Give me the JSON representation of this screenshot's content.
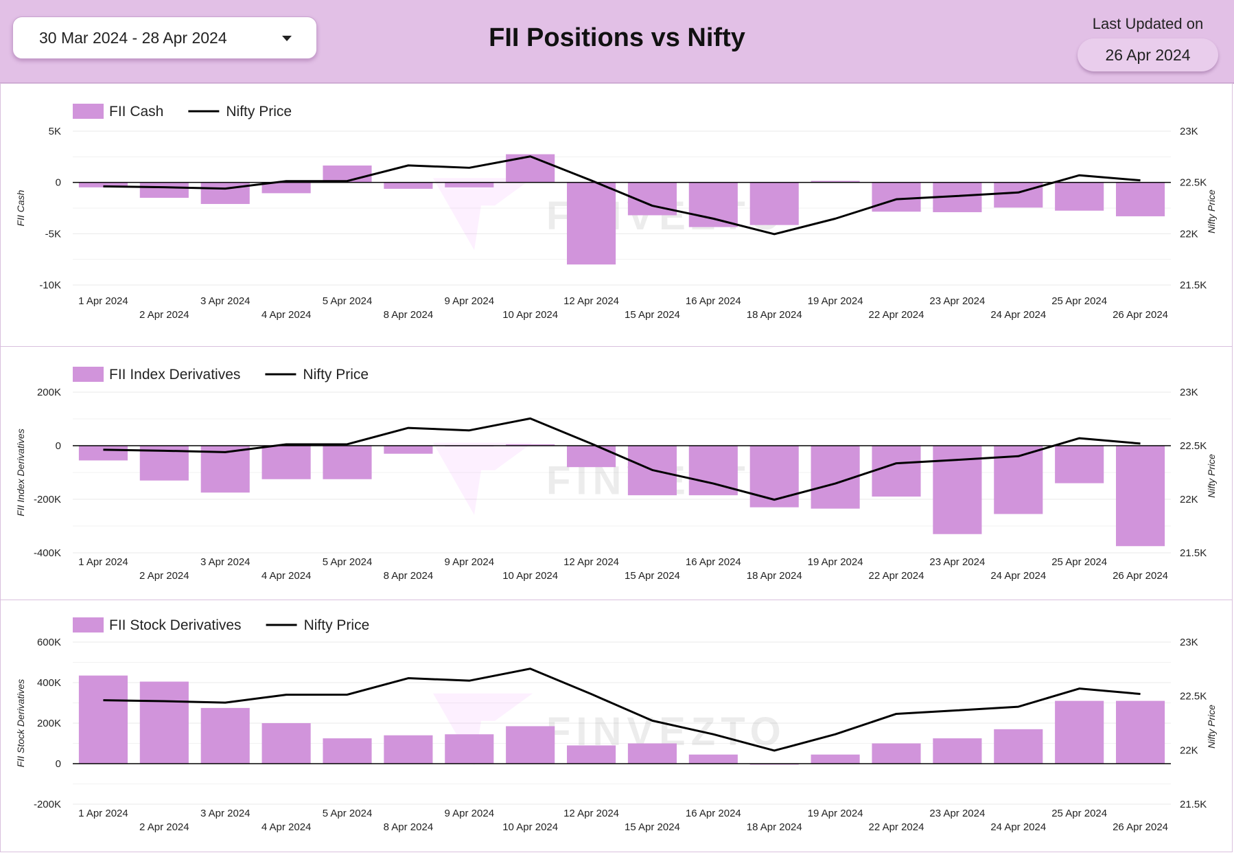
{
  "header": {
    "date_range": "30 Mar 2024 - 28 Apr 2024",
    "title": "FII Positions vs Nifty",
    "last_updated_label": "Last Updated on",
    "last_updated_value": "26 Apr 2024"
  },
  "watermark": "FINVEZTO",
  "colors": {
    "bar": "#d194db",
    "line": "#000000",
    "header_bg": "#e2c0e6"
  },
  "chart_data": [
    {
      "type": "bar",
      "categories": [
        "1 Apr 2024",
        "2 Apr 2024",
        "3 Apr 2024",
        "4 Apr 2024",
        "5 Apr 2024",
        "8 Apr 2024",
        "9 Apr 2024",
        "10 Apr 2024",
        "12 Apr 2024",
        "15 Apr 2024",
        "16 Apr 2024",
        "18 Apr 2024",
        "19 Apr 2024",
        "22 Apr 2024",
        "23 Apr 2024",
        "24 Apr 2024",
        "25 Apr 2024",
        "26 Apr 2024"
      ],
      "series": [
        {
          "name": "FII Cash",
          "type": "bar",
          "axis": "left",
          "values": [
            -480,
            -1500,
            -2100,
            -1050,
            1650,
            -620,
            -480,
            2750,
            -8000,
            -3200,
            -4350,
            -4150,
            150,
            -2850,
            -2900,
            -2450,
            -2750,
            -3300
          ]
        },
        {
          "name": "Nifty Price",
          "type": "line",
          "axis": "right",
          "values": [
            22462,
            22453,
            22440,
            22513,
            22514,
            22666,
            22643,
            22754,
            22519,
            22273,
            22147,
            21996,
            22147,
            22336,
            22368,
            22402,
            22570,
            22520
          ]
        }
      ],
      "ylabel": "FII Cash",
      "y2label": "Nifty Price",
      "ylim": [
        -10000,
        5000
      ],
      "y2lim": [
        21500,
        23000
      ],
      "yticks": [
        "5K",
        "0",
        "-5K",
        "-10K"
      ],
      "y2ticks": [
        "23K",
        "22.5K",
        "22K",
        "21.5K"
      ],
      "legend": "top-left",
      "grid": true
    },
    {
      "type": "bar",
      "categories": [
        "1 Apr 2024",
        "2 Apr 2024",
        "3 Apr 2024",
        "4 Apr 2024",
        "5 Apr 2024",
        "8 Apr 2024",
        "9 Apr 2024",
        "10 Apr 2024",
        "12 Apr 2024",
        "15 Apr 2024",
        "16 Apr 2024",
        "18 Apr 2024",
        "19 Apr 2024",
        "22 Apr 2024",
        "23 Apr 2024",
        "24 Apr 2024",
        "25 Apr 2024",
        "26 Apr 2024"
      ],
      "series": [
        {
          "name": "FII Index Derivatives",
          "type": "bar",
          "axis": "left",
          "values": [
            -55000,
            -130000,
            -175000,
            -125000,
            -125000,
            -30000,
            -2000,
            5000,
            -80000,
            -185000,
            -185000,
            -230000,
            -235000,
            -190000,
            -330000,
            -255000,
            -140000,
            -375000
          ]
        },
        {
          "name": "Nifty Price",
          "type": "line",
          "axis": "right",
          "values": [
            22462,
            22453,
            22440,
            22513,
            22514,
            22666,
            22643,
            22754,
            22519,
            22273,
            22147,
            21996,
            22147,
            22336,
            22368,
            22402,
            22570,
            22520
          ]
        }
      ],
      "ylabel": "FII Index Derivatives",
      "y2label": "Nifty Price",
      "ylim": [
        -400000,
        200000
      ],
      "y2lim": [
        21500,
        23000
      ],
      "yticks": [
        "200K",
        "0",
        "-200K",
        "-400K"
      ],
      "y2ticks": [
        "23K",
        "22.5K",
        "22K",
        "21.5K"
      ],
      "legend": "top-left",
      "grid": true
    },
    {
      "type": "bar",
      "categories": [
        "1 Apr 2024",
        "2 Apr 2024",
        "3 Apr 2024",
        "4 Apr 2024",
        "5 Apr 2024",
        "8 Apr 2024",
        "9 Apr 2024",
        "10 Apr 2024",
        "12 Apr 2024",
        "15 Apr 2024",
        "16 Apr 2024",
        "18 Apr 2024",
        "19 Apr 2024",
        "22 Apr 2024",
        "23 Apr 2024",
        "24 Apr 2024",
        "25 Apr 2024",
        "26 Apr 2024"
      ],
      "series": [
        {
          "name": "FII Stock Derivatives",
          "type": "bar",
          "axis": "left",
          "values": [
            435000,
            405000,
            275000,
            200000,
            125000,
            140000,
            145000,
            185000,
            90000,
            100000,
            45000,
            -5000,
            45000,
            100000,
            125000,
            170000,
            310000,
            310000
          ]
        },
        {
          "name": "Nifty Price",
          "type": "line",
          "axis": "right",
          "values": [
            22462,
            22453,
            22440,
            22513,
            22514,
            22666,
            22643,
            22754,
            22519,
            22273,
            22147,
            21996,
            22147,
            22336,
            22368,
            22402,
            22570,
            22520
          ]
        }
      ],
      "ylabel": "FII Stock Derivatives",
      "y2label": "Nifty Price",
      "ylim": [
        -200000,
        600000
      ],
      "y2lim": [
        21500,
        23000
      ],
      "yticks": [
        "600K",
        "400K",
        "200K",
        "0",
        "-200K"
      ],
      "y2ticks": [
        "23K",
        "22.5K",
        "22K",
        "21.5K"
      ],
      "legend": "top-left",
      "grid": true
    }
  ]
}
